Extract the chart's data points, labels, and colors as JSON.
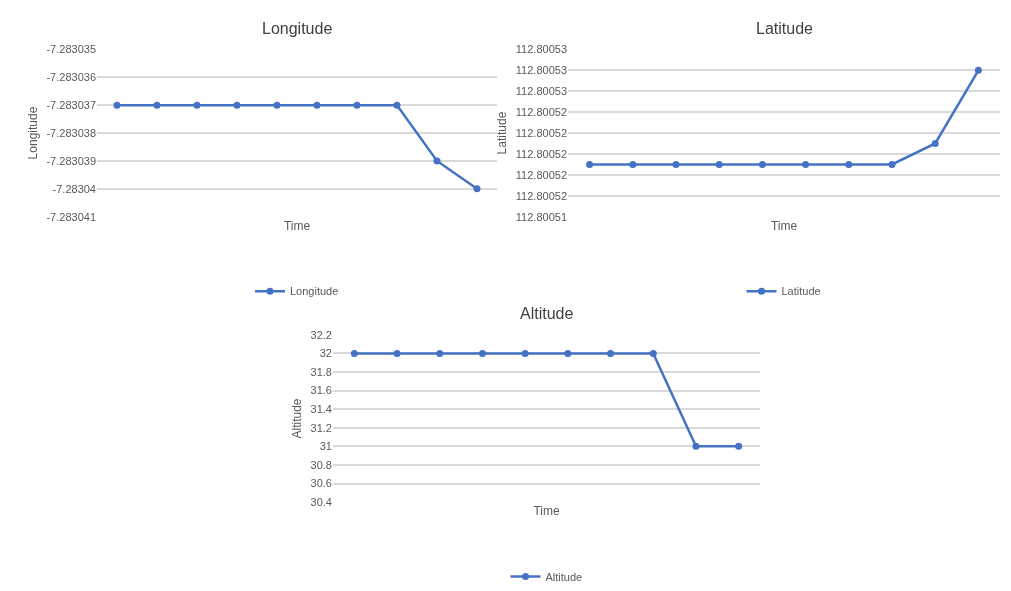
{
  "chart_data": [
    {
      "type": "line",
      "title": "Longitude",
      "xlabel": "Time",
      "ylabel": "Longitude",
      "categories": [
        null,
        null,
        null,
        null,
        null,
        null,
        null,
        null,
        null,
        null
      ],
      "series": [
        {
          "name": "Longitude",
          "color": "#4472c4",
          "values": [
            -7.283037,
            -7.283037,
            -7.283037,
            -7.283037,
            -7.283037,
            -7.283037,
            -7.283037,
            -7.283037,
            -7.283039,
            -7.28304
          ]
        }
      ],
      "ylim": [
        -7.283041,
        -7.283035
      ],
      "yticks": [
        -7.283041,
        -7.28304,
        -7.283039,
        -7.283038,
        -7.283037,
        -7.283036,
        -7.283035
      ],
      "grid": "y",
      "legend": "bottom",
      "marker": "circle",
      "tick_labels": "y"
    },
    {
      "type": "line",
      "title": "Latitude",
      "xlabel": "Time",
      "ylabel": "Latitude",
      "categories": [
        null,
        null,
        null,
        null,
        null,
        null,
        null,
        null,
        null,
        null
      ],
      "series": [
        {
          "name": "Latitude",
          "color": "#4472c4",
          "values": [
            112.800519,
            112.800519,
            112.800519,
            112.800519,
            112.800519,
            112.800519,
            112.800519,
            112.800519,
            112.800521,
            112.800528
          ]
        }
      ],
      "ylim": [
        112.800514,
        112.80053
      ],
      "yticks": [
        {
          "value": 112.800514,
          "label": "112.80051"
        },
        {
          "value": 112.800516,
          "label": "112.80052"
        },
        {
          "value": 112.800518,
          "label": "112.80052"
        },
        {
          "value": 112.80052,
          "label": "112.80052"
        },
        {
          "value": 112.800522,
          "label": "112.80052"
        },
        {
          "value": 112.800524,
          "label": "112.80052"
        },
        {
          "value": 112.800526,
          "label": "112.80053"
        },
        {
          "value": 112.800528,
          "label": "112.80053"
        },
        {
          "value": 112.80053,
          "label": "112.80053"
        }
      ],
      "grid": "y",
      "legend": "bottom",
      "marker": "circle",
      "tick_labels": "y"
    },
    {
      "type": "line",
      "title": "Altitude",
      "xlabel": "Time",
      "ylabel": "Altitude",
      "categories": [
        null,
        null,
        null,
        null,
        null,
        null,
        null,
        null,
        null,
        null
      ],
      "series": [
        {
          "name": "Altitude",
          "color": "#4472c4",
          "values": [
            32,
            32,
            32,
            32,
            32,
            32,
            32,
            32,
            31,
            31
          ]
        }
      ],
      "ylim": [
        30.4,
        32.2
      ],
      "yticks": [
        30.4,
        30.6,
        30.8,
        31,
        31.2,
        31.4,
        31.6,
        31.8,
        32,
        32.2
      ],
      "grid": "y",
      "legend": "bottom",
      "marker": "circle",
      "tick_labels": "y"
    }
  ]
}
